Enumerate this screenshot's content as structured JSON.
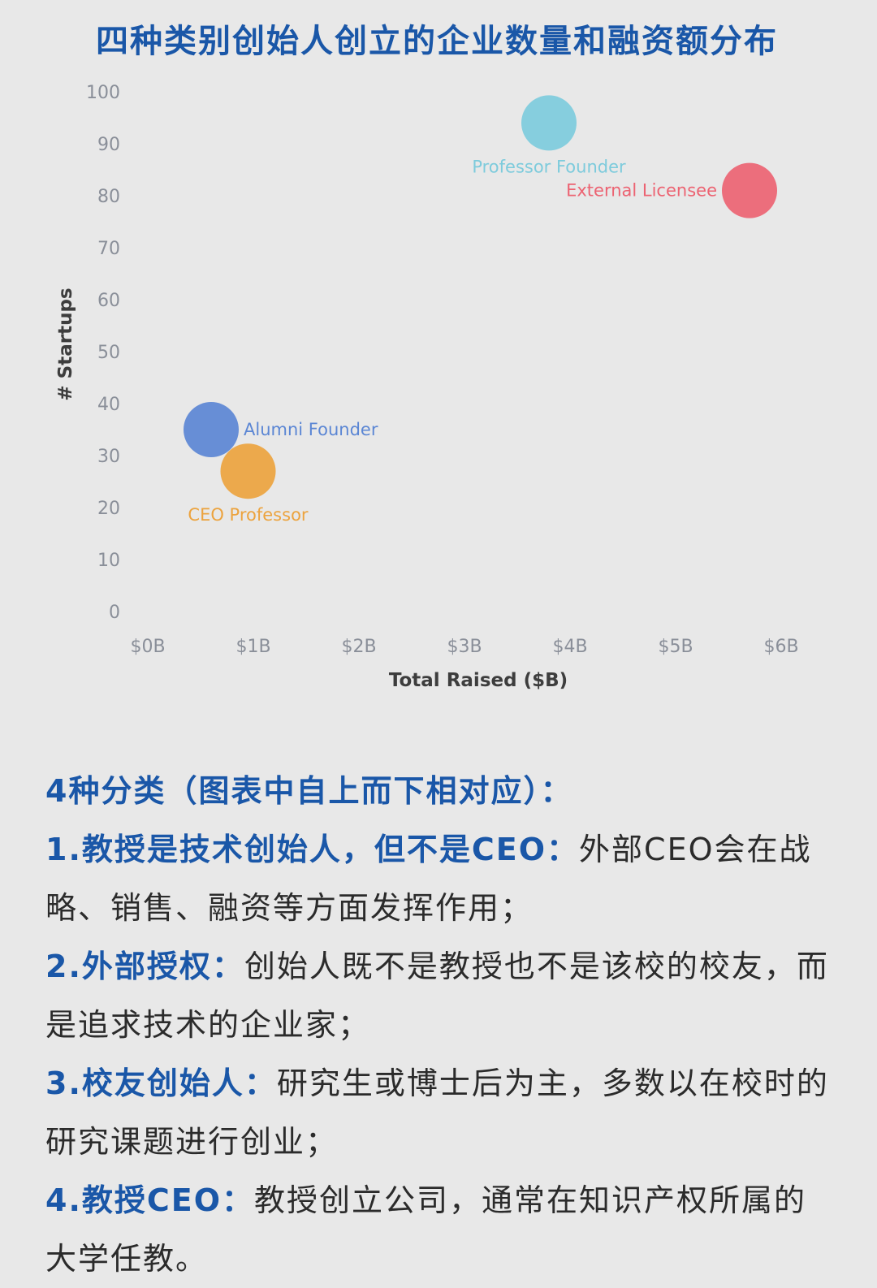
{
  "title": "四种类别创始人创立的企业数量和融资额分布",
  "chart_data": {
    "type": "scatter",
    "xlabel": "Total Raised ($B)",
    "ylabel": "# Startups",
    "xlim": [
      0,
      6
    ],
    "ylim": [
      0,
      100
    ],
    "xticks": [
      "$0B",
      "$1B",
      "$2B",
      "$3B",
      "$4B",
      "$5B",
      "$6B"
    ],
    "yticks": [
      "0",
      "10",
      "20",
      "30",
      "40",
      "50",
      "60",
      "70",
      "80",
      "90",
      "100"
    ],
    "grid": false,
    "points": [
      {
        "name": "Professor Founder",
        "x": 3.8,
        "y": 94,
        "color": "#7dcbdc",
        "label_pos": "below"
      },
      {
        "name": "External Licensee",
        "x": 5.7,
        "y": 81,
        "color": "#ec6372",
        "label_pos": "left"
      },
      {
        "name": "Alumni Founder",
        "x": 0.6,
        "y": 35,
        "color": "#5b86d4",
        "label_pos": "right"
      },
      {
        "name": "CEO Professor",
        "x": 0.95,
        "y": 27,
        "color": "#eca33e",
        "label_pos": "below"
      }
    ]
  },
  "notes": {
    "heading": "4种分类（图表中自上而下相对应）：",
    "items": [
      {
        "label": "1.教授是技术创始人，但不是CEO：",
        "text": "外部CEO会在战略、销售、融资等方面发挥作用；"
      },
      {
        "label": "2.外部授权：",
        "text": "创始人既不是教授也不是该校的校友，而是追求技术的企业家；"
      },
      {
        "label": "3.校友创始人：",
        "text": "研究生或博士后为主，多数以在校时的研究课题进行创业；"
      },
      {
        "label": "4.教授CEO：",
        "text": "教授创立公司，通常在知识产权所属的大学任教。"
      }
    ]
  }
}
